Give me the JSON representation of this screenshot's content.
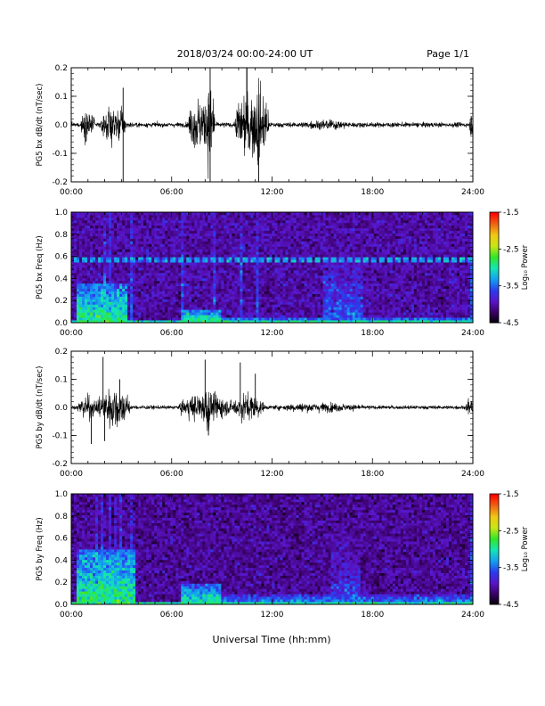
{
  "header": {
    "title": "2018/03/24  00:00-24:00 UT",
    "page_label": "Page 1/1"
  },
  "footer": {
    "xlabel": "Universal Time (hh:mm)"
  },
  "colors": {
    "trace": "#000000",
    "colormap": [
      "#000000",
      "#3a0064",
      "#5a14c8",
      "#2a3cf0",
      "#14a0f0",
      "#14e6b4",
      "#32e628",
      "#c8e614",
      "#f0c814",
      "#f06414",
      "#ff0000"
    ]
  },
  "chart_data": [
    {
      "type": "line",
      "ylabel": "PG5 bx dB/dt (nT/sec)",
      "x_tick_labels": [
        "00:00",
        "06:00",
        "12:00",
        "18:00",
        "24:00"
      ],
      "y_tick_labels": [
        "0.2",
        "0.1",
        "0.0",
        "-0.1",
        "-0.2"
      ],
      "xlim": [
        0,
        24
      ],
      "ylim": [
        -0.2,
        0.2
      ],
      "x_unit": "hours UT",
      "baseline_amplitude": 0.01,
      "bursts": [
        {
          "start": 0.55,
          "end": 1.4,
          "amp": 0.06
        },
        {
          "start": 1.8,
          "end": 3.3,
          "amp": 0.08
        },
        {
          "start": 7.0,
          "end": 8.6,
          "amp": 0.12
        },
        {
          "start": 8.1,
          "end": 8.5,
          "amp": 0.2
        },
        {
          "start": 9.8,
          "end": 11.8,
          "amp": 0.15
        },
        {
          "start": 10.3,
          "end": 10.6,
          "amp": 0.2
        },
        {
          "start": 11.0,
          "end": 11.4,
          "amp": 0.2
        },
        {
          "start": 13.5,
          "end": 17.0,
          "amp": 0.02
        },
        {
          "start": 23.8,
          "end": 24.0,
          "amp": 0.05
        }
      ],
      "spikes": [
        {
          "t": 3.1,
          "v": 0.13
        },
        {
          "t": 3.1,
          "v": -0.2
        },
        {
          "t": 8.3,
          "v": 0.2
        },
        {
          "t": 8.3,
          "v": -0.2
        },
        {
          "t": 10.5,
          "v": 0.2
        },
        {
          "t": 11.2,
          "v": -0.2
        }
      ]
    },
    {
      "type": "heatmap",
      "ylabel": "PG5 bx Freq (Hz)",
      "colorbar_label": "Log₁₀ Power",
      "x_tick_labels": [
        "00:00",
        "06:00",
        "12:00",
        "18:00",
        "24:00"
      ],
      "y_tick_labels": [
        "1.0",
        "0.8",
        "0.6",
        "0.4",
        "0.2",
        "0.0"
      ],
      "colorbar_tick_labels": [
        "-1.5",
        "-2.5",
        "-3.5",
        "-4.5"
      ],
      "xlim": [
        0,
        24
      ],
      "ylim": [
        0,
        1.0
      ],
      "zlim": [
        -4.5,
        -1.5
      ],
      "background_level": -4.0,
      "line_band": {
        "freq": 0.57,
        "level": -3.3
      },
      "activity": [
        {
          "start": 0.3,
          "end": 3.4,
          "fmax": 0.35,
          "level": -2.8
        },
        {
          "start": 6.5,
          "end": 9.0,
          "fmax": 0.12,
          "level": -2.8
        },
        {
          "start": 9.0,
          "end": 24.0,
          "fmax": 0.05,
          "level": -3.0
        },
        {
          "start": 15.0,
          "end": 17.5,
          "fmax": 0.75,
          "level": -3.5
        }
      ],
      "stripes": [
        2.0,
        2.3,
        3.6,
        6.7,
        8.5,
        10.2,
        11.1,
        23.9
      ]
    },
    {
      "type": "line",
      "ylabel": "PG5 by dB/dt (nT/sec)",
      "x_tick_labels": [
        "00:00",
        "06:00",
        "12:00",
        "18:00",
        "24:00"
      ],
      "y_tick_labels": [
        "0.2",
        "0.1",
        "0.0",
        "-0.1",
        "-0.2"
      ],
      "xlim": [
        0,
        24
      ],
      "ylim": [
        -0.2,
        0.2
      ],
      "x_unit": "hours UT",
      "baseline_amplitude": 0.008,
      "bursts": [
        {
          "start": 0.4,
          "end": 1.5,
          "amp": 0.05
        },
        {
          "start": 1.5,
          "end": 3.5,
          "amp": 0.09
        },
        {
          "start": 6.5,
          "end": 9.5,
          "amp": 0.06
        },
        {
          "start": 8.0,
          "end": 8.3,
          "amp": 0.12
        },
        {
          "start": 9.5,
          "end": 11.5,
          "amp": 0.06
        },
        {
          "start": 12.0,
          "end": 17.5,
          "amp": 0.02
        },
        {
          "start": 23.6,
          "end": 24.0,
          "amp": 0.04
        }
      ],
      "spikes": [
        {
          "t": 1.9,
          "v": 0.18
        },
        {
          "t": 1.2,
          "v": -0.13
        },
        {
          "t": 2.0,
          "v": -0.12
        },
        {
          "t": 2.9,
          "v": 0.1
        },
        {
          "t": 8.0,
          "v": 0.17
        },
        {
          "t": 8.2,
          "v": -0.1
        },
        {
          "t": 10.1,
          "v": 0.16
        },
        {
          "t": 11.0,
          "v": 0.12
        }
      ]
    },
    {
      "type": "heatmap",
      "ylabel": "PG5 by Freq (Hz)",
      "colorbar_label": "Log₁₀ Power",
      "x_tick_labels": [
        "00:00",
        "06:00",
        "12:00",
        "18:00",
        "24:00"
      ],
      "y_tick_labels": [
        "1.0",
        "0.8",
        "0.6",
        "0.4",
        "0.2",
        "0.0"
      ],
      "colorbar_tick_labels": [
        "-1.5",
        "-2.5",
        "-3.5",
        "-4.5"
      ],
      "xlim": [
        0,
        24
      ],
      "ylim": [
        0,
        1.0
      ],
      "zlim": [
        -4.5,
        -1.5
      ],
      "background_level": -4.05,
      "line_band": null,
      "activity": [
        {
          "start": 0.3,
          "end": 3.8,
          "fmax": 0.5,
          "level": -2.8
        },
        {
          "start": 6.5,
          "end": 9.0,
          "fmax": 0.2,
          "level": -2.9
        },
        {
          "start": 9.0,
          "end": 24.0,
          "fmax": 0.1,
          "level": -3.2
        },
        {
          "start": 15.5,
          "end": 17.3,
          "fmax": 0.75,
          "level": -3.6
        }
      ],
      "stripes": [
        1.5,
        1.9,
        2.3,
        2.7,
        3.0,
        3.6,
        23.9
      ]
    }
  ]
}
